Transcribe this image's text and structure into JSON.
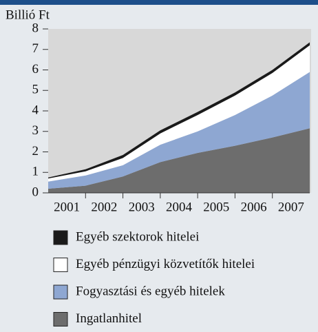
{
  "chart_data": {
    "type": "stacked_area",
    "y_label": "Billió Ft",
    "x": [
      2001,
      2002,
      2003,
      2004,
      2005,
      2006,
      2007,
      2008
    ],
    "xlim": [
      2001,
      2008
    ],
    "xticks": [
      {
        "value": 2001.5,
        "label": "2001"
      },
      {
        "value": 2002.5,
        "label": "2002"
      },
      {
        "value": 2003.5,
        "label": "2003"
      },
      {
        "value": 2004.5,
        "label": "2004"
      },
      {
        "value": 2005.5,
        "label": "2005"
      },
      {
        "value": 2006.5,
        "label": "2006"
      },
      {
        "value": 2007.5,
        "label": "2007"
      }
    ],
    "ylim": [
      0,
      8
    ],
    "yticks": [
      0,
      1,
      2,
      3,
      4,
      5,
      6,
      7,
      8
    ],
    "series": [
      {
        "name": "Egyéb szektorok hitelei",
        "color": "#1a1a1a",
        "values": [
          0.05,
          0.1,
          0.15,
          0.15,
          0.15,
          0.15,
          0.15,
          0.15
        ]
      },
      {
        "name": "Egyéb pénzügyi közvetítők hitelei",
        "color": "#ffffff",
        "values": [
          0.15,
          0.2,
          0.35,
          0.55,
          0.8,
          0.95,
          1.1,
          1.3
        ]
      },
      {
        "name": "Fogyasztási és egyéb hitelek",
        "color": "#8ea7d2",
        "values": [
          0.35,
          0.5,
          0.55,
          0.85,
          1.05,
          1.5,
          2.05,
          2.75
        ]
      },
      {
        "name": "Ingatlanhitel",
        "color": "#6d6d6d",
        "values": [
          0.2,
          0.35,
          0.8,
          1.5,
          1.95,
          2.3,
          2.7,
          3.15
        ]
      }
    ]
  }
}
